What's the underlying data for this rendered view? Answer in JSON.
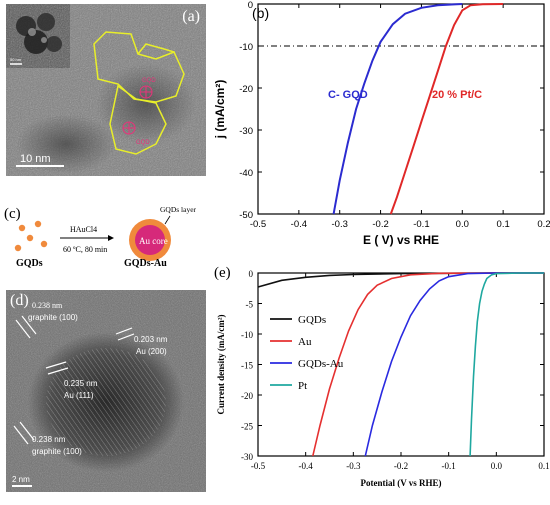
{
  "panel_a": {
    "label": "(a)",
    "scalebar": "10 nm",
    "inset_scale": "50 nm",
    "annotations": [
      "GQD",
      "GQD"
    ]
  },
  "panel_c": {
    "label": "(c)",
    "left_label": "GQDs",
    "reagent": "HAuCl4",
    "conditions": "60 ºC, 80 min",
    "shell_label": "GQDs layer",
    "core_label": "Au core",
    "right_label": "GQDs-Au"
  },
  "panel_d": {
    "label": "(d)",
    "scalebar": "2 nm",
    "annotations": [
      {
        "d": "0.238 nm",
        "plane": "graphite (100)"
      },
      {
        "d": "0.203 nm",
        "plane": "Au (200)"
      },
      {
        "d": "0.235 nm",
        "plane": "Au (111)"
      },
      {
        "d": "0.238 nm",
        "plane": "graphite (100)"
      }
    ]
  },
  "chart_data": [
    {
      "panel": "(b)",
      "type": "line",
      "xlabel": "E ( V)  vs RHE",
      "ylabel": "j (mA/cm²)",
      "xlim": [
        -0.5,
        0.2
      ],
      "ylim": [
        -50,
        0
      ],
      "xticks": [
        "-0.5",
        "-0.4",
        "-0.3",
        "-0.2",
        "-0.1",
        "0.0",
        "0.1",
        "0.2"
      ],
      "yticks": [
        "0",
        "-10",
        "-20",
        "-30",
        "-40",
        "-50"
      ],
      "reference_line_y": -10,
      "series": [
        {
          "name": "C- GQD",
          "color": "#2b2bd0",
          "x": [
            -0.315,
            -0.3,
            -0.28,
            -0.26,
            -0.24,
            -0.22,
            -0.2,
            -0.17,
            -0.14,
            -0.1,
            -0.06,
            -0.02,
            0.0
          ],
          "y": [
            -50,
            -42,
            -33,
            -25,
            -19,
            -13.5,
            -9,
            -4.8,
            -2.3,
            -0.9,
            -0.3,
            -0.1,
            0
          ]
        },
        {
          "name": "20 % Pt/C",
          "color": "#e02828",
          "x": [
            -0.175,
            -0.16,
            -0.14,
            -0.12,
            -0.1,
            -0.08,
            -0.06,
            -0.04,
            -0.02,
            0.0,
            0.02,
            0.05,
            0.1
          ],
          "y": [
            -50,
            -46,
            -40,
            -34,
            -28,
            -22,
            -16,
            -10,
            -5,
            -1.5,
            -0.3,
            -0.05,
            0
          ]
        }
      ]
    },
    {
      "panel": "(e)",
      "type": "line",
      "xlabel": "Potential (V vs RHE)",
      "ylabel": "Current density (mA/cm²)",
      "xlim": [
        -0.5,
        0.1
      ],
      "ylim": [
        -30,
        0
      ],
      "xticks": [
        "-0.5",
        "-0.4",
        "-0.3",
        "-0.2",
        "-0.1",
        "0.0",
        "0.1"
      ],
      "yticks": [
        "0",
        "-5",
        "-10",
        "-15",
        "-20",
        "-25",
        "-30"
      ],
      "series": [
        {
          "name": "GQDs",
          "color": "#111111",
          "x": [
            -0.5,
            -0.45,
            -0.4,
            -0.35,
            -0.3,
            -0.2,
            -0.1,
            0.0,
            0.1
          ],
          "y": [
            -2.3,
            -1.2,
            -0.7,
            -0.4,
            -0.25,
            -0.1,
            -0.05,
            0,
            0
          ]
        },
        {
          "name": "Au",
          "color": "#e53030",
          "x": [
            -0.385,
            -0.37,
            -0.35,
            -0.33,
            -0.31,
            -0.29,
            -0.27,
            -0.25,
            -0.22,
            -0.18,
            -0.12,
            0.0,
            0.1
          ],
          "y": [
            -30,
            -25,
            -19,
            -14,
            -9.5,
            -6,
            -3.5,
            -2,
            -0.9,
            -0.3,
            -0.05,
            0,
            0
          ]
        },
        {
          "name": "GQDs-Au",
          "color": "#2a2ae0",
          "x": [
            -0.275,
            -0.26,
            -0.24,
            -0.22,
            -0.2,
            -0.18,
            -0.16,
            -0.14,
            -0.12,
            -0.1,
            -0.06,
            0.0,
            0.1
          ],
          "y": [
            -30,
            -25,
            -19.5,
            -14.5,
            -10.5,
            -7,
            -4.5,
            -2.6,
            -1.3,
            -0.6,
            -0.1,
            0,
            0
          ]
        },
        {
          "name": "Pt",
          "color": "#1fa8a0",
          "x": [
            -0.055,
            -0.052,
            -0.048,
            -0.044,
            -0.04,
            -0.035,
            -0.03,
            -0.025,
            -0.02,
            -0.01,
            0.0,
            0.05,
            0.1
          ],
          "y": [
            -30,
            -24,
            -17,
            -12,
            -8,
            -5,
            -3,
            -1.8,
            -0.9,
            -0.3,
            -0.1,
            0,
            0
          ]
        }
      ]
    }
  ]
}
